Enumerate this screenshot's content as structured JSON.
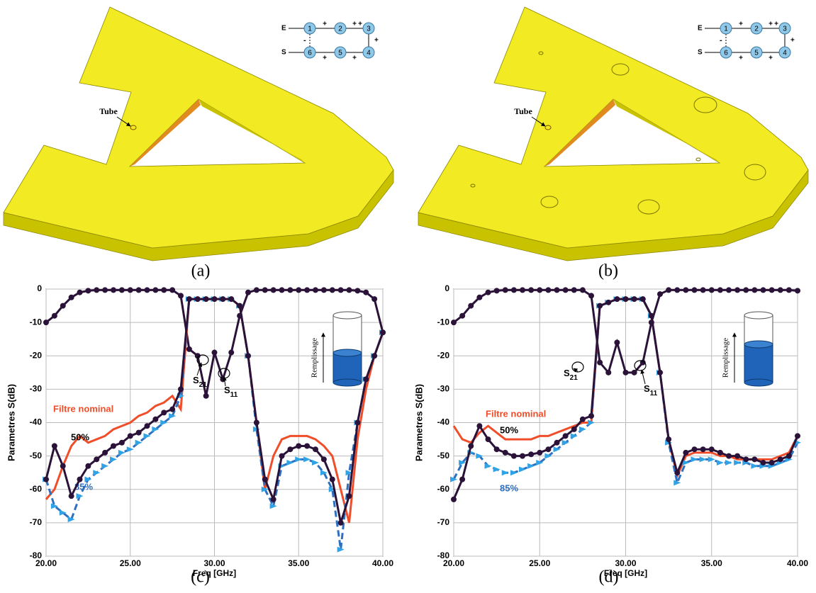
{
  "panels": [
    {
      "label": "(a)",
      "tube_label": "Tube"
    },
    {
      "label": "(b)",
      "tube_label": "Tube"
    }
  ],
  "schematic": {
    "input": "E",
    "output": "S",
    "nodes": [
      "1",
      "2",
      "3",
      "4",
      "5",
      "6"
    ],
    "signs_top": [
      "+",
      "+",
      "+"
    ],
    "sign_right": "+",
    "signs_bottom": [
      "+",
      "+"
    ],
    "sign_left": "-"
  },
  "inset_label": "Remplissage",
  "chart_data": [
    {
      "type": "line",
      "panel_label": "(c)",
      "x_label": "Freq [GHz]",
      "y_label": "Parametres S(dB)",
      "x": [
        20,
        20.5,
        21,
        21.5,
        22,
        22.5,
        23,
        23.5,
        24,
        24.5,
        25,
        25.5,
        26,
        26.5,
        27,
        27.5,
        28,
        28.5,
        29,
        29.5,
        30,
        30.5,
        31,
        31.5,
        32,
        32.5,
        33,
        33.5,
        34,
        34.5,
        35,
        35.5,
        36,
        36.5,
        37,
        37.5,
        38,
        38.5,
        39,
        39.5,
        40
      ],
      "xlim": [
        20,
        40
      ],
      "xticks": [
        {
          "value": 20,
          "label": "20.00"
        },
        {
          "value": 25,
          "label": "25.00"
        },
        {
          "value": 30,
          "label": "30.00"
        },
        {
          "value": 35,
          "label": "35.00"
        },
        {
          "value": 40,
          "label": "40.00"
        }
      ],
      "ylim": [
        -80,
        0
      ],
      "yticks": [
        0,
        -10,
        -20,
        -30,
        -40,
        -50,
        -60,
        -70,
        -80
      ],
      "grid": true,
      "annotations": [
        {
          "text": "S",
          "sub": "21"
        },
        {
          "text": "S",
          "sub": "11"
        }
      ],
      "series": [
        {
          "color": "#2a1238",
          "marker": "circle",
          "values": [
            -10,
            -8,
            -5,
            -2.5,
            -1,
            -0.5,
            -0.3,
            -0.3,
            -0.3,
            -0.3,
            -0.3,
            -0.3,
            -0.3,
            -0.3,
            -0.3,
            -0.3,
            -2,
            -18,
            -20,
            -32,
            -19,
            -27,
            -19,
            -8,
            -1,
            -0.3,
            -0.3,
            -0.3,
            -0.3,
            -0.3,
            -0.3,
            -0.3,
            -0.3,
            -0.3,
            -0.3,
            -0.3,
            -0.3,
            -0.5,
            -1,
            -3,
            -13
          ]
        },
        {
          "name": "Filtre nominal",
          "color": "#f04e2a",
          "values": [
            -63,
            -60,
            -53,
            -47,
            -44,
            -46,
            -45,
            -44,
            -42,
            -41,
            -40,
            -38,
            -37,
            -35,
            -34,
            -32,
            -36,
            -3,
            -3,
            -3,
            -3,
            -3,
            -3,
            -5,
            -20,
            -40,
            -60,
            -50,
            -45,
            -44,
            -44,
            -44,
            -45,
            -47,
            -50,
            -60,
            -70,
            -45,
            -30,
            -20,
            -13
          ]
        },
        {
          "name": "85%",
          "color": "#2e6fc0",
          "marker": "triangle",
          "dashed": true,
          "values": [
            -57,
            -65,
            -67,
            -69,
            -62,
            -57,
            -55,
            -53,
            -51,
            -49,
            -48,
            -46,
            -44,
            -42,
            -40,
            -38,
            -32,
            -3,
            -3,
            -3,
            -3,
            -3,
            -3,
            -5,
            -20,
            -42,
            -60,
            -65,
            -53,
            -52,
            -51,
            -51,
            -52,
            -55,
            -60,
            -78,
            -55,
            -40,
            -27,
            -20,
            -13
          ]
        },
        {
          "name": "50%",
          "color": "#2a1238",
          "marker": "circle",
          "values": [
            -57,
            -47,
            -53,
            -62,
            -57,
            -53,
            -51,
            -49,
            -47,
            -46,
            -44,
            -43,
            -41,
            -39,
            -37,
            -36,
            -30,
            -3,
            -3,
            -3,
            -3,
            -3,
            -3,
            -5,
            -20,
            -40,
            -57,
            -63,
            -50,
            -48,
            -47,
            -47,
            -48,
            -51,
            -57,
            -70,
            -62,
            -40,
            -27,
            -20,
            -13
          ]
        }
      ]
    },
    {
      "type": "line",
      "panel_label": "(d)",
      "x_label": "Freq [GHz]",
      "y_label": "Parametres S(dB)",
      "x": [
        20,
        20.5,
        21,
        21.5,
        22,
        22.5,
        23,
        23.5,
        24,
        24.5,
        25,
        25.5,
        26,
        26.5,
        27,
        27.5,
        28,
        28.5,
        29,
        29.5,
        30,
        30.5,
        31,
        31.5,
        32,
        32.5,
        33,
        33.5,
        34,
        34.5,
        35,
        35.5,
        36,
        36.5,
        37,
        37.5,
        38,
        38.5,
        39,
        39.5,
        40
      ],
      "xlim": [
        20,
        40
      ],
      "xticks": [
        {
          "value": 20,
          "label": "20.00"
        },
        {
          "value": 25,
          "label": "25.00"
        },
        {
          "value": 30,
          "label": "30.00"
        },
        {
          "value": 35,
          "label": "35.00"
        },
        {
          "value": 40,
          "label": "40.00"
        }
      ],
      "ylim": [
        -80,
        0
      ],
      "yticks": [
        0,
        -10,
        -20,
        -30,
        -40,
        -50,
        -60,
        -70,
        -80
      ],
      "grid": true,
      "annotations": [
        {
          "text": "S",
          "sub": "21"
        },
        {
          "text": "S",
          "sub": "11"
        }
      ],
      "series": [
        {
          "color": "#2a1238",
          "marker": "circle",
          "values": [
            -10,
            -8,
            -5,
            -2.5,
            -1,
            -0.5,
            -0.3,
            -0.3,
            -0.3,
            -0.3,
            -0.3,
            -0.3,
            -0.3,
            -0.3,
            -0.3,
            -0.3,
            -2,
            -22,
            -25,
            -16,
            -25,
            -25,
            -22,
            -10,
            -1.5,
            -0.3,
            -0.3,
            -0.3,
            -0.3,
            -0.3,
            -0.3,
            -0.3,
            -0.3,
            -0.3,
            -0.3,
            -0.3,
            -0.3,
            -0.3,
            -0.3,
            -0.3,
            -0.5
          ]
        },
        {
          "name": "Filtre nominal",
          "color": "#f04e2a",
          "values": [
            -41,
            -45,
            -46,
            -43,
            -41,
            -43,
            -45,
            -45,
            -45,
            -45,
            -44,
            -44,
            -43,
            -42,
            -41,
            -40,
            -40,
            -5,
            -4,
            -3,
            -3,
            -3,
            -3,
            -8,
            -25,
            -45,
            -56,
            -50,
            -49,
            -49,
            -49,
            -50,
            -50,
            -51,
            -51,
            -51,
            -51,
            -51,
            -50,
            -49,
            -44
          ]
        },
        {
          "name": "85%",
          "color": "#2e6fc0",
          "marker": "triangle",
          "dashed": true,
          "values": [
            -57,
            -52,
            -49,
            -50,
            -53,
            -54,
            -55,
            -55,
            -54,
            -53,
            -52,
            -50,
            -48,
            -46,
            -44,
            -42,
            -40,
            -5,
            -4,
            -3,
            -3,
            -3,
            -3,
            -8,
            -25,
            -46,
            -58,
            -52,
            -51,
            -51,
            -51,
            -52,
            -52,
            -52,
            -52,
            -53,
            -53,
            -53,
            -52,
            -51,
            -46
          ]
        },
        {
          "name": "50%",
          "color": "#2a1238",
          "marker": "circle",
          "values": [
            -63,
            -57,
            -47,
            -41,
            -45,
            -48,
            -49,
            -50,
            -50,
            -49.5,
            -49,
            -48,
            -46,
            -44,
            -42,
            -39,
            -38,
            -5,
            -4,
            -3,
            -3,
            -3,
            -3,
            -8,
            -25,
            -45,
            -55,
            -49,
            -48,
            -48,
            -48,
            -49,
            -50,
            -50,
            -51,
            -51,
            -52,
            -52,
            -51,
            -50,
            -44
          ]
        }
      ]
    }
  ]
}
